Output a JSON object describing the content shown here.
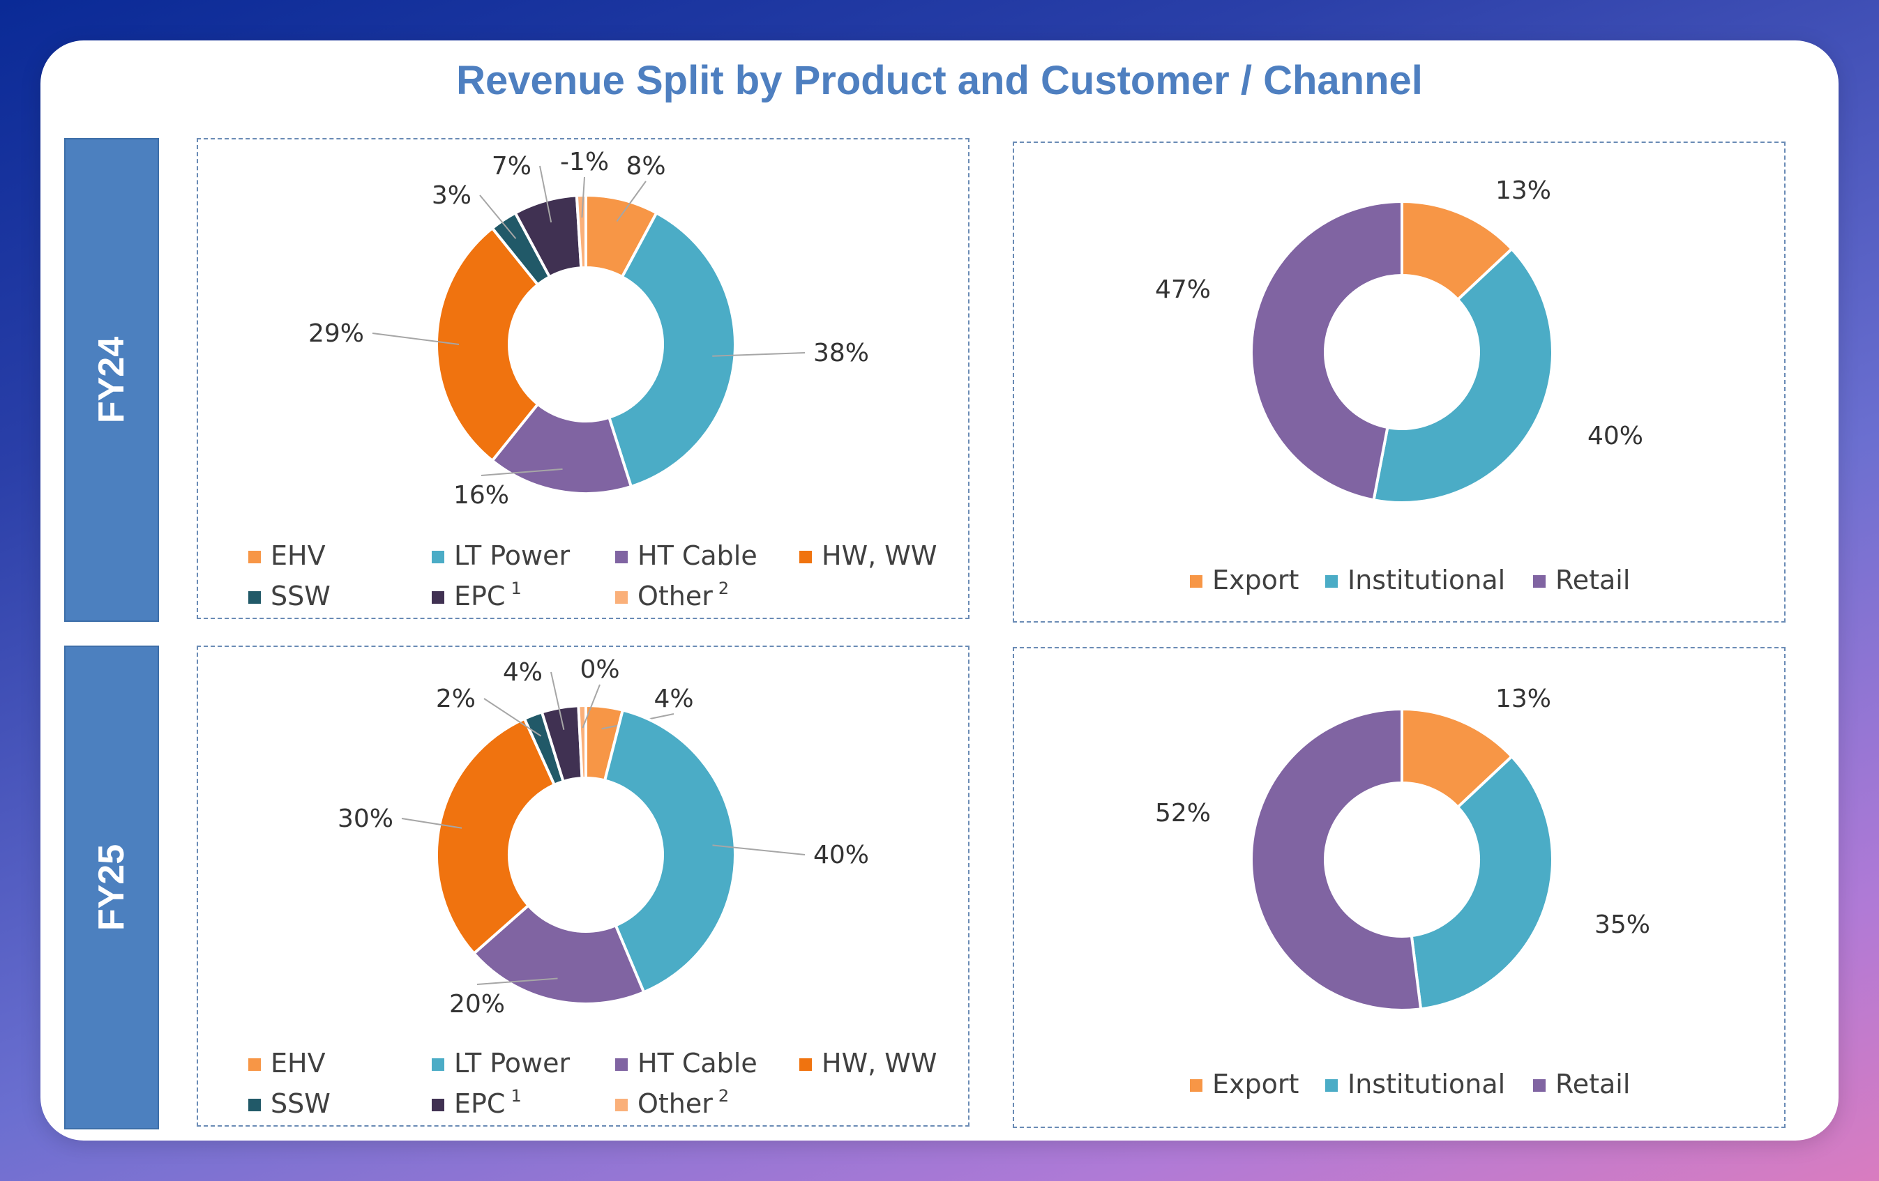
{
  "title": "Revenue Split by Product and Customer / Channel",
  "row_labels": [
    "FY24",
    "FY25"
  ],
  "colors": {
    "EHV": "#f79646",
    "LT Power": "#4bacc6",
    "HT Cable": "#8064a2",
    "HW, WW": "#f0730f",
    "SSW": "#215968",
    "EPC": "#403152",
    "Other": "#fab07a",
    "Export": "#f79646",
    "Institutional": "#4bacc6",
    "Retail": "#8064a2"
  },
  "chart_data": [
    {
      "type": "pie",
      "style": "doughnut",
      "period": "FY24",
      "categories": [
        "EHV",
        "LT Power",
        "HT Cable",
        "HW, WW",
        "SSW",
        "EPC",
        "Other"
      ],
      "legend_superscripts": [
        "",
        "",
        "",
        "",
        "",
        "1",
        "2"
      ],
      "values": [
        8,
        38,
        16,
        29,
        3,
        7,
        -1
      ],
      "data_labels": [
        "8%",
        "38%",
        "16%",
        "29%",
        "3%",
        "7%",
        "-1%"
      ],
      "legend_position": "bottom"
    },
    {
      "type": "pie",
      "style": "doughnut",
      "period": "FY24",
      "categories": [
        "Export",
        "Institutional",
        "Retail"
      ],
      "values": [
        13,
        40,
        47
      ],
      "data_labels": [
        "13%",
        "40%",
        "47%"
      ],
      "legend_position": "bottom"
    },
    {
      "type": "pie",
      "style": "doughnut",
      "period": "FY25",
      "categories": [
        "EHV",
        "LT Power",
        "HT Cable",
        "HW, WW",
        "SSW",
        "EPC",
        "Other"
      ],
      "legend_superscripts": [
        "",
        "",
        "",
        "",
        "",
        "1",
        "2"
      ],
      "values": [
        4,
        40,
        20,
        30,
        2,
        4,
        0
      ],
      "data_labels": [
        "4%",
        "40%",
        "20%",
        "30%",
        "2%",
        "4%",
        "0%"
      ],
      "legend_position": "bottom"
    },
    {
      "type": "pie",
      "style": "doughnut",
      "period": "FY25",
      "categories": [
        "Export",
        "Institutional",
        "Retail"
      ],
      "values": [
        13,
        35,
        52
      ],
      "data_labels": [
        "13%",
        "35%",
        "52%"
      ],
      "legend_position": "bottom"
    }
  ]
}
